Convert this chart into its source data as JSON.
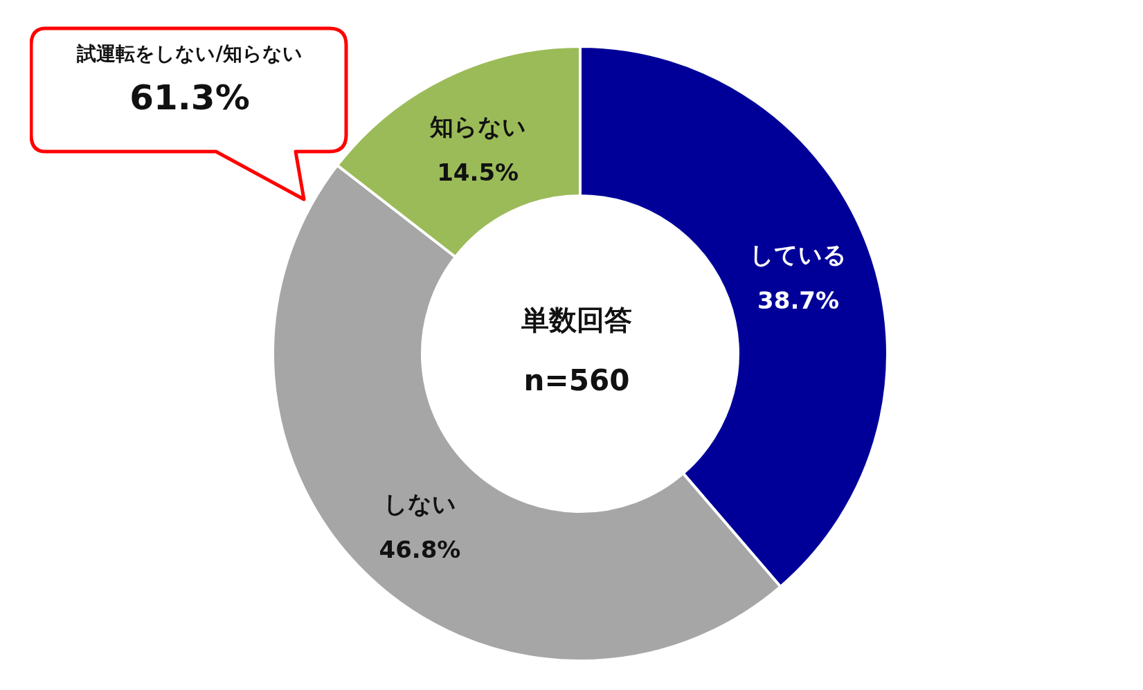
{
  "chart_data": {
    "type": "donut",
    "categories": [
      "している",
      "しない",
      "知らない"
    ],
    "values": [
      38.7,
      46.8,
      14.5
    ],
    "colors": [
      "#000099",
      "#a6a6a6",
      "#9bbb59"
    ],
    "value_labels": [
      "38.7%",
      "46.8%",
      "14.5%"
    ],
    "annotations": [
      "単数回答",
      "n=560",
      "試運転をしない/知らない",
      "61.3%"
    ]
  }
}
